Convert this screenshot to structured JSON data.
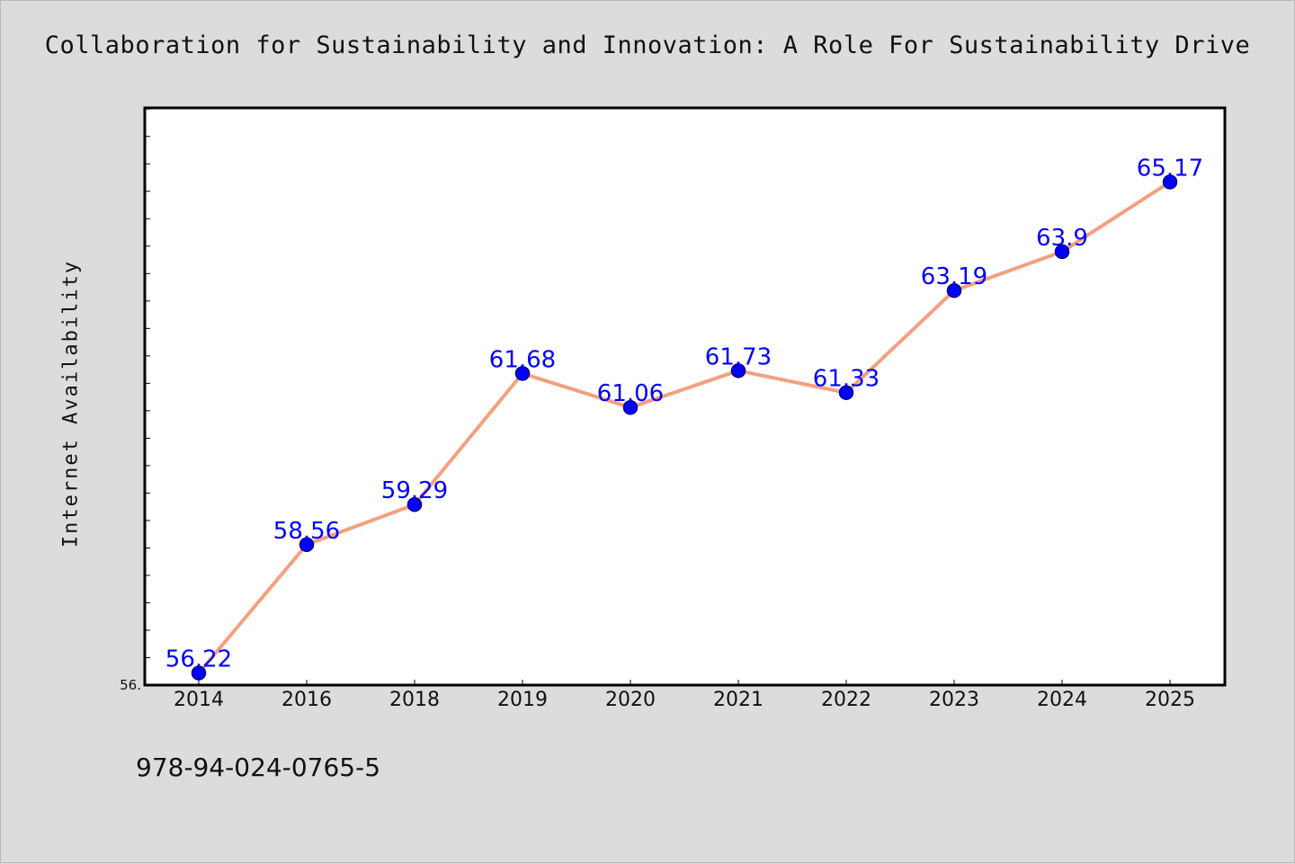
{
  "chart_data": {
    "type": "line",
    "title": "Collaboration for Sustainability and Innovation: A Role For Sustainability Drive",
    "xlabel": "",
    "ylabel": "Internet Availability",
    "categories": [
      "2014",
      "2016",
      "2018",
      "2019",
      "2020",
      "2021",
      "2022",
      "2023",
      "2024",
      "2025"
    ],
    "series": [
      {
        "values": [
          56.22,
          58.56,
          59.29,
          61.68,
          61.06,
          61.73,
          61.33,
          63.19,
          63.9,
          65.17
        ],
        "labels": [
          "56.22",
          "58.56",
          "59.29",
          "61.68",
          "61.06",
          "61.73",
          "61.33",
          "63.19",
          "63.9",
          "65.17"
        ]
      }
    ],
    "yticks": [
      {
        "value": 56.0,
        "label": "56."
      }
    ],
    "ylim": [
      56.0,
      66.52
    ],
    "minor_tick_step": 0.5,
    "grid": false,
    "legend": "none",
    "colors": {
      "line": "#f4a07e",
      "marker": "#0000ff",
      "data_label": "#0000ff",
      "plot_bg": "#ffffff",
      "page_bg": "#dcdcdc"
    }
  },
  "footer": {
    "code": "978-94-024-0765-5"
  }
}
